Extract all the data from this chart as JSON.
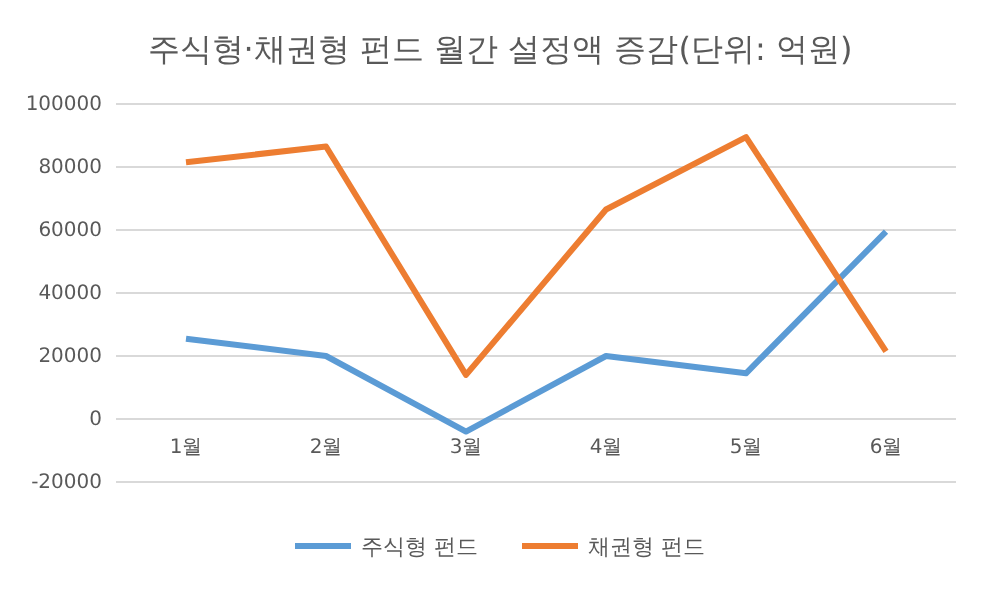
{
  "chart_data": {
    "type": "line",
    "title": "주식형·채권형 펀드 월간 설정액 증감(단위: 억원)",
    "categories": [
      "1월",
      "2월",
      "3월",
      "4월",
      "5월",
      "6월"
    ],
    "series": [
      {
        "name": "주식형 펀드",
        "color": "#5b9bd5",
        "values": [
          25500,
          20000,
          -4000,
          20000,
          14500,
          59500
        ]
      },
      {
        "name": "채권형 펀드",
        "color": "#ed7d31",
        "values": [
          81500,
          86500,
          14000,
          66500,
          89500,
          21500
        ]
      }
    ],
    "ylim": [
      -20000,
      100000
    ],
    "yticks": [
      -20000,
      0,
      20000,
      40000,
      60000,
      80000,
      100000
    ],
    "grid": "y",
    "legend": "bottom",
    "marker": "none",
    "line_style": "solid"
  }
}
